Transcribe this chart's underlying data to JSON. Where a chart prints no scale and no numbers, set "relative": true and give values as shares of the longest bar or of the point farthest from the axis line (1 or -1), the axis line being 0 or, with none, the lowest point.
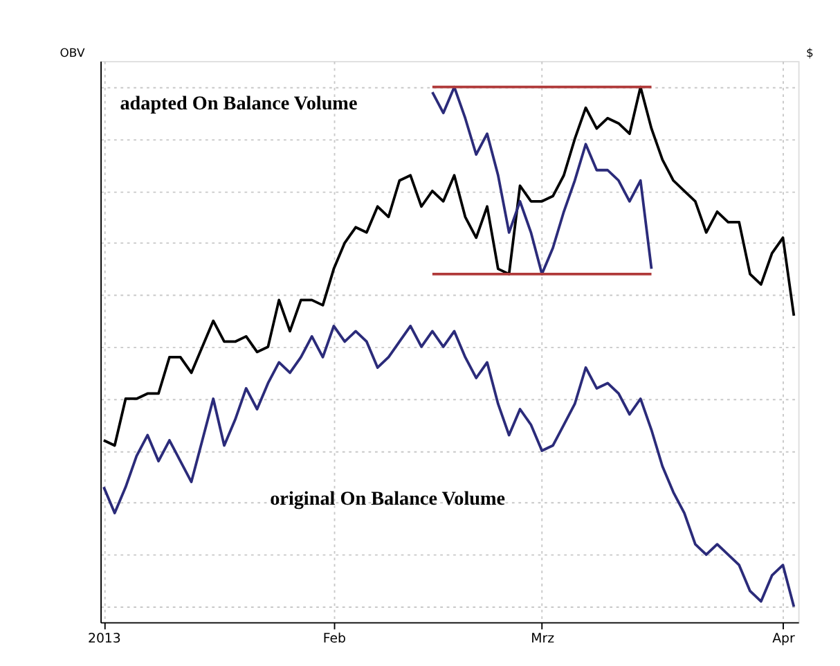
{
  "chart_data": {
    "type": "line",
    "relative": true,
    "ylabel": "OBV",
    "y2label": "$",
    "grid": true,
    "marker": "none",
    "line_style": "solid",
    "categories": [
      "2013",
      null,
      null,
      null,
      null,
      null,
      null,
      null,
      null,
      null,
      null,
      null,
      null,
      null,
      null,
      null,
      null,
      null,
      null,
      null,
      null,
      "Feb",
      null,
      null,
      null,
      null,
      null,
      null,
      null,
      null,
      null,
      null,
      null,
      null,
      null,
      null,
      null,
      null,
      null,
      null,
      "Mrz",
      null,
      null,
      null,
      null,
      null,
      null,
      null,
      null,
      null,
      null,
      null,
      null,
      null,
      null,
      null,
      null,
      null,
      null,
      null,
      null,
      null,
      "Apr",
      null
    ],
    "series": [
      {
        "color": "#000000",
        "values": [
          0.32,
          0.31,
          0.4,
          0.4,
          0.41,
          0.41,
          0.48,
          0.48,
          0.45,
          0.5,
          0.55,
          0.51,
          0.51,
          0.52,
          0.49,
          0.5,
          0.59,
          0.53,
          0.59,
          0.59,
          0.58,
          0.65,
          0.7,
          0.73,
          0.72,
          0.77,
          0.75,
          0.82,
          0.83,
          0.77,
          0.8,
          0.78,
          0.83,
          0.75,
          0.71,
          0.77,
          0.65,
          0.64,
          0.81,
          0.78,
          0.78,
          0.79,
          0.83,
          0.9,
          0.96,
          0.92,
          0.94,
          0.93,
          0.91,
          1.0,
          0.92,
          0.86,
          0.82,
          0.8,
          0.78,
          0.72,
          0.76,
          0.74,
          0.74,
          0.64,
          0.62,
          0.68,
          0.71,
          0.56
        ]
      },
      {
        "color": "#2b2b7a",
        "values": [
          0.23,
          0.18,
          0.23,
          0.29,
          0.33,
          0.28,
          0.32,
          0.28,
          0.24,
          0.32,
          0.4,
          0.31,
          0.36,
          0.42,
          0.38,
          0.43,
          0.47,
          0.45,
          0.48,
          0.52,
          0.48,
          0.54,
          0.51,
          0.53,
          0.51,
          0.46,
          0.48,
          0.51,
          0.54,
          0.5,
          0.53,
          0.5,
          0.53,
          0.48,
          0.44,
          0.47,
          0.39,
          0.33,
          0.38,
          0.35,
          0.3,
          0.31,
          0.35,
          0.39,
          0.46,
          0.42,
          0.43,
          0.41,
          0.37,
          0.4,
          0.34,
          0.27,
          0.22,
          0.18,
          0.12,
          0.1,
          0.12,
          0.1,
          0.08,
          0.03,
          0.01,
          0.06,
          0.08,
          0.0
        ]
      },
      {
        "color": "#2b2b7a",
        "values": [
          null,
          null,
          null,
          null,
          null,
          null,
          null,
          null,
          null,
          null,
          null,
          null,
          null,
          null,
          null,
          null,
          null,
          null,
          null,
          null,
          null,
          null,
          null,
          null,
          null,
          null,
          null,
          null,
          null,
          null,
          0.99,
          0.95,
          1.0,
          0.94,
          0.87,
          0.91,
          0.83,
          0.72,
          0.78,
          0.72,
          0.64,
          0.69,
          0.76,
          0.82,
          0.89,
          0.84,
          0.84,
          0.82,
          0.78,
          0.82,
          0.65,
          null,
          null,
          null,
          null,
          null,
          null,
          null,
          null,
          null,
          null,
          null,
          null,
          null
        ]
      },
      {
        "color": "#b03a3a",
        "values": [
          null,
          null,
          null,
          null,
          null,
          null,
          null,
          null,
          null,
          null,
          null,
          null,
          null,
          null,
          null,
          null,
          null,
          null,
          null,
          null,
          null,
          null,
          null,
          null,
          null,
          null,
          null,
          null,
          null,
          null,
          1.0,
          null,
          null,
          null,
          null,
          null,
          null,
          null,
          null,
          null,
          null,
          null,
          null,
          null,
          null,
          null,
          null,
          null,
          null,
          null,
          1.0,
          null,
          null,
          null,
          null,
          null,
          null,
          null,
          null,
          null,
          null,
          null,
          null,
          null
        ]
      },
      {
        "color": "#b03a3a",
        "values": [
          null,
          null,
          null,
          null,
          null,
          null,
          null,
          null,
          null,
          null,
          null,
          null,
          null,
          null,
          null,
          null,
          null,
          null,
          null,
          null,
          null,
          null,
          null,
          null,
          null,
          null,
          null,
          null,
          null,
          null,
          0.64,
          null,
          null,
          null,
          null,
          null,
          null,
          null,
          null,
          null,
          null,
          null,
          null,
          null,
          null,
          null,
          null,
          null,
          null,
          null,
          0.64,
          null,
          null,
          null,
          null,
          null,
          null,
          null,
          null,
          null,
          null,
          null,
          null,
          null
        ]
      }
    ],
    "annotations": [
      "adapted On Balance Volume",
      "original On Balance Volume"
    ]
  }
}
